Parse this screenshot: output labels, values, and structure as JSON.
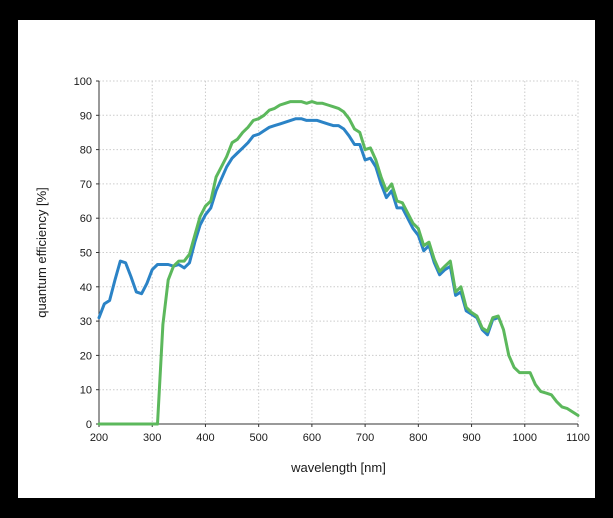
{
  "chart_data": {
    "type": "line",
    "title": "",
    "xlabel": "wavelength [nm]",
    "ylabel": "quantum efficiency [%]",
    "xlim": [
      200,
      1100
    ],
    "ylim": [
      0,
      100
    ],
    "xticks": [
      200,
      300,
      400,
      500,
      600,
      700,
      800,
      900,
      1000,
      1100
    ],
    "yticks": [
      0,
      10,
      20,
      30,
      40,
      50,
      60,
      70,
      80,
      90,
      100
    ],
    "grid": true,
    "series": [
      {
        "color": "#2b83c6",
        "points": [
          [
            200,
            31
          ],
          [
            210,
            35
          ],
          [
            220,
            36
          ],
          [
            230,
            42
          ],
          [
            240,
            47.5
          ],
          [
            250,
            47
          ],
          [
            260,
            43
          ],
          [
            270,
            38.5
          ],
          [
            280,
            38
          ],
          [
            290,
            41
          ],
          [
            300,
            45
          ],
          [
            310,
            46.5
          ],
          [
            320,
            46.5
          ],
          [
            330,
            46.5
          ],
          [
            340,
            46
          ],
          [
            350,
            46.5
          ],
          [
            360,
            45.5
          ],
          [
            370,
            47
          ],
          [
            380,
            53
          ],
          [
            390,
            58
          ],
          [
            400,
            61
          ],
          [
            410,
            63
          ],
          [
            420,
            68
          ],
          [
            430,
            71.5
          ],
          [
            440,
            75
          ],
          [
            450,
            77.5
          ],
          [
            460,
            79
          ],
          [
            470,
            80.5
          ],
          [
            480,
            82
          ],
          [
            490,
            84
          ],
          [
            500,
            84.5
          ],
          [
            510,
            85.5
          ],
          [
            520,
            86.5
          ],
          [
            530,
            87
          ],
          [
            540,
            87.5
          ],
          [
            550,
            88
          ],
          [
            560,
            88.5
          ],
          [
            570,
            89
          ],
          [
            580,
            89
          ],
          [
            590,
            88.5
          ],
          [
            600,
            88.5
          ],
          [
            610,
            88.5
          ],
          [
            620,
            88
          ],
          [
            630,
            87.5
          ],
          [
            640,
            87
          ],
          [
            650,
            87
          ],
          [
            660,
            86
          ],
          [
            670,
            84
          ],
          [
            680,
            81.5
          ],
          [
            690,
            81.5
          ],
          [
            700,
            77
          ],
          [
            710,
            77.5
          ],
          [
            720,
            75
          ],
          [
            730,
            70
          ],
          [
            740,
            66
          ],
          [
            750,
            68
          ],
          [
            760,
            63
          ],
          [
            770,
            63
          ],
          [
            780,
            60
          ],
          [
            790,
            57
          ],
          [
            800,
            55
          ],
          [
            810,
            50.5
          ],
          [
            820,
            52
          ],
          [
            830,
            47
          ],
          [
            840,
            43.5
          ],
          [
            850,
            45
          ],
          [
            860,
            46
          ],
          [
            870,
            37.5
          ],
          [
            880,
            38.5
          ],
          [
            890,
            33
          ],
          [
            900,
            32
          ],
          [
            910,
            31
          ],
          [
            920,
            27.5
          ],
          [
            930,
            26
          ],
          [
            940,
            30.5
          ],
          [
            950,
            31
          ]
        ]
      },
      {
        "color": "#5cb85c",
        "points": [
          [
            200,
            0
          ],
          [
            210,
            0
          ],
          [
            220,
            0
          ],
          [
            230,
            0
          ],
          [
            240,
            0
          ],
          [
            250,
            0
          ],
          [
            260,
            0
          ],
          [
            270,
            0
          ],
          [
            280,
            0
          ],
          [
            290,
            0
          ],
          [
            300,
            0
          ],
          [
            310,
            0
          ],
          [
            320,
            29
          ],
          [
            330,
            42
          ],
          [
            340,
            46
          ],
          [
            350,
            47.5
          ],
          [
            360,
            47.5
          ],
          [
            370,
            49.5
          ],
          [
            380,
            55
          ],
          [
            390,
            60.5
          ],
          [
            400,
            63.5
          ],
          [
            410,
            65
          ],
          [
            420,
            72
          ],
          [
            430,
            75
          ],
          [
            440,
            78
          ],
          [
            450,
            82
          ],
          [
            460,
            83
          ],
          [
            470,
            85
          ],
          [
            480,
            86.5
          ],
          [
            490,
            88.5
          ],
          [
            500,
            89
          ],
          [
            510,
            90
          ],
          [
            520,
            91.5
          ],
          [
            530,
            92
          ],
          [
            540,
            93
          ],
          [
            550,
            93.5
          ],
          [
            560,
            94
          ],
          [
            570,
            94
          ],
          [
            580,
            94
          ],
          [
            590,
            93.5
          ],
          [
            600,
            94
          ],
          [
            610,
            93.5
          ],
          [
            620,
            93.5
          ],
          [
            630,
            93
          ],
          [
            640,
            92.5
          ],
          [
            650,
            92
          ],
          [
            660,
            91
          ],
          [
            670,
            89
          ],
          [
            680,
            86
          ],
          [
            690,
            85
          ],
          [
            700,
            80
          ],
          [
            710,
            80.5
          ],
          [
            720,
            77
          ],
          [
            730,
            72
          ],
          [
            740,
            68
          ],
          [
            750,
            70
          ],
          [
            760,
            65
          ],
          [
            770,
            64.5
          ],
          [
            780,
            61.5
          ],
          [
            790,
            58.5
          ],
          [
            800,
            57
          ],
          [
            810,
            52
          ],
          [
            820,
            53
          ],
          [
            830,
            48
          ],
          [
            840,
            44.5
          ],
          [
            850,
            46
          ],
          [
            860,
            47.5
          ],
          [
            870,
            38.5
          ],
          [
            880,
            40
          ],
          [
            890,
            34
          ],
          [
            900,
            32.5
          ],
          [
            910,
            31.5
          ],
          [
            920,
            28
          ],
          [
            930,
            27
          ],
          [
            940,
            31
          ],
          [
            950,
            31.5
          ],
          [
            960,
            27.5
          ],
          [
            970,
            20
          ],
          [
            980,
            16.5
          ],
          [
            990,
            15
          ],
          [
            1000,
            15
          ],
          [
            1010,
            15
          ],
          [
            1020,
            11.5
          ],
          [
            1030,
            9.5
          ],
          [
            1040,
            9
          ],
          [
            1050,
            8.5
          ],
          [
            1060,
            6.5
          ],
          [
            1070,
            5
          ],
          [
            1080,
            4.5
          ],
          [
            1090,
            3.5
          ],
          [
            1100,
            2.5
          ]
        ]
      }
    ]
  }
}
